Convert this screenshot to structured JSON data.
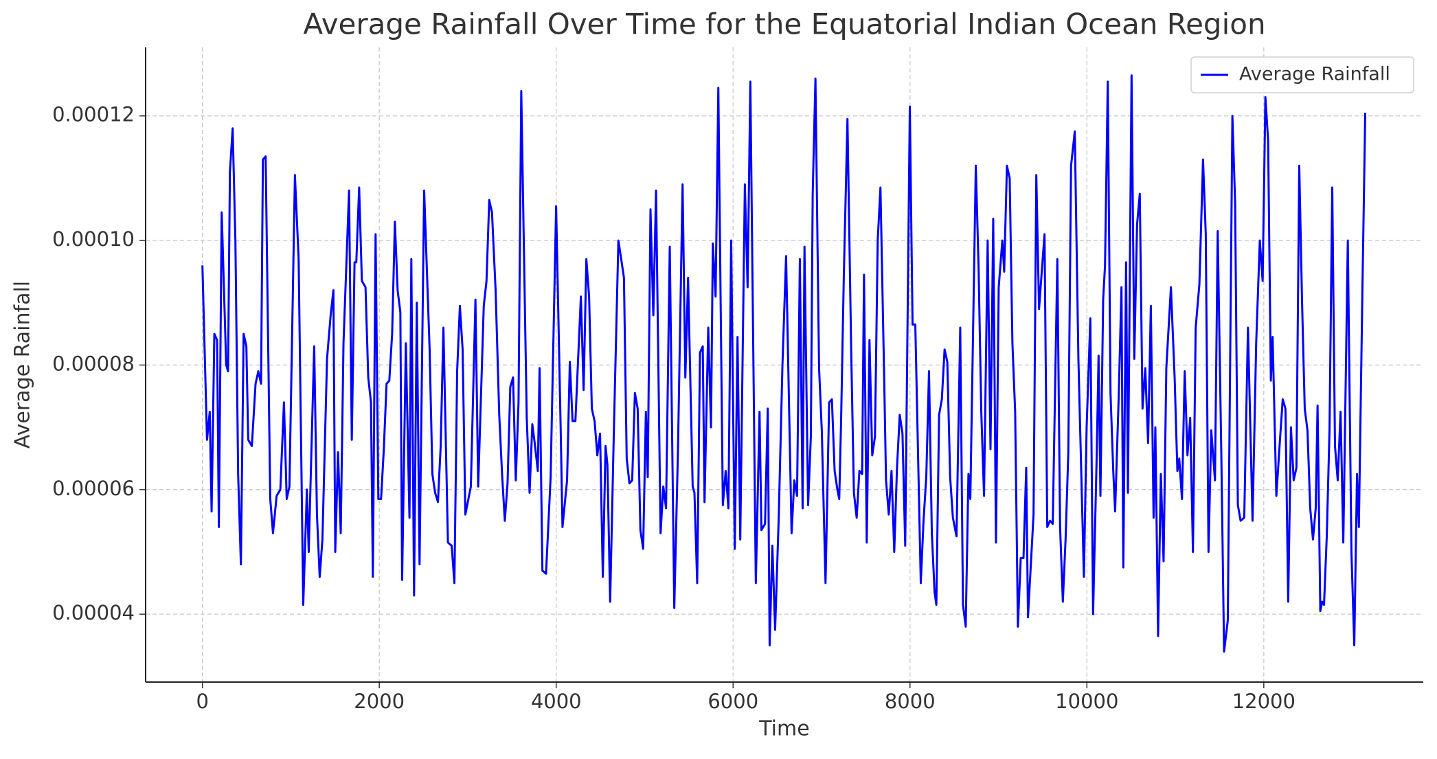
{
  "chart_data": {
    "type": "line",
    "title": "Average Rainfall Over Time for the Equatorial Indian Ocean Region",
    "xlabel": "Time",
    "ylabel": "Average Rainfall",
    "xlim": [
      -642,
      13803
    ],
    "ylim": [
      2.91e-05,
      0.000131
    ],
    "xticks": [
      0,
      2000,
      4000,
      6000,
      8000,
      10000,
      12000
    ],
    "yticks": [
      4e-05,
      6e-05,
      8e-05,
      {
        "value": 0.0001,
        "label": "0.00010"
      },
      0.00012
    ],
    "grid": true,
    "legend": "upper right",
    "x": [
      0,
      52,
      83,
      104,
      135,
      166,
      186,
      218,
      269,
      290,
      311,
      342,
      373,
      404,
      435,
      466,
      497,
      518,
      559,
      601,
      632,
      663,
      684,
      715,
      767,
      798,
      839,
      881,
      922,
      953,
      984,
      1046,
      1088,
      1140,
      1181,
      1202,
      1264,
      1295,
      1326,
      1357,
      1409,
      1450,
      1481,
      1502,
      1533,
      1564,
      1595,
      1658,
      1689,
      1720,
      1740,
      1772,
      1803,
      1844,
      1875,
      1906,
      1927,
      1958,
      1989,
      2020,
      2051,
      2082,
      2113,
      2145,
      2176,
      2207,
      2238,
      2258,
      2300,
      2341,
      2362,
      2393,
      2424,
      2455,
      2507,
      2569,
      2600,
      2631,
      2663,
      2694,
      2725,
      2776,
      2818,
      2849,
      2880,
      2911,
      2942,
      2973,
      3035,
      3087,
      3118,
      3181,
      3212,
      3243,
      3274,
      3315,
      3356,
      3388,
      3419,
      3450,
      3481,
      3512,
      3543,
      3574,
      3605,
      3667,
      3699,
      3730,
      3761,
      3792,
      3812,
      3844,
      3885,
      3937,
      3999,
      4051,
      4071,
      4123,
      4154,
      4185,
      4217,
      4279,
      4310,
      4341,
      4372,
      4403,
      4434,
      4465,
      4496,
      4527,
      4558,
      4579,
      4610,
      4652,
      4703,
      4735,
      4766,
      4797,
      4828,
      4859,
      4890,
      4921,
      4952,
      4983,
      5014,
      5035,
      5066,
      5098,
      5129,
      5180,
      5211,
      5242,
      5284,
      5335,
      5377,
      5429,
      5460,
      5491,
      5543,
      5563,
      5594,
      5626,
      5657,
      5677,
      5719,
      5750,
      5771,
      5802,
      5833,
      5884,
      5916,
      5947,
      5978,
      6019,
      6050,
      6081,
      6133,
      6164,
      6195,
      6257,
      6299,
      6320,
      6361,
      6392,
      6413,
      6444,
      6475,
      6516,
      6558,
      6599,
      6641,
      6661,
      6692,
      6723,
      6755,
      6786,
      6807,
      6848,
      6879,
      6900,
      6931,
      6972,
      7003,
      7045,
      7086,
      7117,
      7148,
      7179,
      7200,
      7221,
      7252,
      7293,
      7335,
      7366,
      7397,
      7428,
      7459,
      7480,
      7511,
      7542,
      7573,
      7604,
      7635,
      7666,
      7708,
      7729,
      7760,
      7791,
      7822,
      7853,
      7884,
      7915,
      7946,
      7998,
      8029,
      8060,
      8122,
      8153,
      8184,
      8215,
      8247,
      8278,
      8298,
      8329,
      8360,
      8391,
      8422,
      8454,
      8485,
      8526,
      8568,
      8599,
      8630,
      8661,
      8682,
      8744,
      8775,
      8806,
      8837,
      8878,
      8910,
      8941,
      8972,
      9003,
      9044,
      9065,
      9096,
      9127,
      9158,
      9189,
      9220,
      9252,
      9283,
      9314,
      9334,
      9397,
      9428,
      9459,
      9500,
      9521,
      9552,
      9583,
      9614,
      9666,
      9697,
      9728,
      9759,
      9790,
      9821,
      9863,
      9904,
      9966,
      9997,
      10039,
      10070,
      10111,
      10132,
      10153,
      10184,
      10205,
      10236,
      10267,
      10298,
      10319,
      10360,
      10391,
      10412,
      10443,
      10464,
      10505,
      10536,
      10567,
      10598,
      10629,
      10660,
      10692,
      10723,
      10754,
      10774,
      10805,
      10836,
      10867,
      10898,
      10950,
      10992,
      11023,
      11044,
      11075,
      11106,
      11137,
      11168,
      11199,
      11230,
      11272,
      11313,
      11344,
      11375,
      11406,
      11448,
      11479,
      11520,
      11551,
      11593,
      11645,
      11676,
      11707,
      11738,
      11779,
      11821,
      11873,
      11914,
      11955,
      11987,
      12018,
      12049,
      12080,
      12100,
      12142,
      12183,
      12214,
      12245,
      12276,
      12307,
      12338,
      12369,
      12401,
      12432,
      12463,
      12494,
      12525,
      12556,
      12587,
      12608,
      12639,
      12660,
      12681,
      12712,
      12743,
      12774,
      12805,
      12836,
      12868,
      12899,
      12950,
      12991,
      13023,
      13054,
      13075,
      13116,
      13147
    ],
    "series": [
      {
        "name": "Average Rainfall",
        "color": "#0000ff",
        "values": [
          9.6e-05,
          6.8e-05,
          7.25e-05,
          5.65e-05,
          8.5e-05,
          8.4e-05,
          5.4e-05,
          0.0001045,
          8e-05,
          7.9e-05,
          0.000111,
          0.000118,
          0.0001,
          6.25e-05,
          4.8e-05,
          8.5e-05,
          8.3e-05,
          6.8e-05,
          6.7e-05,
          7.7e-05,
          7.9e-05,
          7.7e-05,
          0.000113,
          0.0001135,
          5.85e-05,
          5.3e-05,
          5.9e-05,
          6e-05,
          7.4e-05,
          5.85e-05,
          6.05e-05,
          0.0001105,
          9.7e-05,
          4.15e-05,
          6e-05,
          5e-05,
          8.3e-05,
          5.6e-05,
          4.6e-05,
          5.2e-05,
          8.1e-05,
          8.8e-05,
          9.2e-05,
          5e-05,
          6.6e-05,
          5.3e-05,
          8.35e-05,
          0.000108,
          6.8e-05,
          9.65e-05,
          9.65e-05,
          0.0001085,
          9.35e-05,
          9.25e-05,
          7.8e-05,
          7.4e-05,
          4.6e-05,
          0.000101,
          5.85e-05,
          5.85e-05,
          6.65e-05,
          7.7e-05,
          7.75e-05,
          8.5e-05,
          0.000103,
          9.2e-05,
          8.85e-05,
          4.55e-05,
          8.35e-05,
          5.55e-05,
          9.7e-05,
          4.3e-05,
          9e-05,
          4.8e-05,
          0.000108,
          8.25e-05,
          6.25e-05,
          5.95e-05,
          5.8e-05,
          6.7e-05,
          8.6e-05,
          5.15e-05,
          5.1e-05,
          4.5e-05,
          7.9e-05,
          8.95e-05,
          8.25e-05,
          5.6e-05,
          6.05e-05,
          9.05e-05,
          6.05e-05,
          8.95e-05,
          9.35e-05,
          0.0001065,
          0.0001045,
          9.2e-05,
          7.2e-05,
          6.25e-05,
          5.5e-05,
          6.1e-05,
          7.65e-05,
          7.8e-05,
          6.15e-05,
          7.4e-05,
          0.000124,
          7.15e-05,
          5.95e-05,
          7.05e-05,
          6.7e-05,
          6.3e-05,
          7.95e-05,
          4.7e-05,
          4.65e-05,
          6.2e-05,
          0.0001055,
          6.95e-05,
          5.4e-05,
          6.15e-05,
          8.05e-05,
          7.1e-05,
          7.1e-05,
          9.1e-05,
          7.6e-05,
          9.7e-05,
          9.1e-05,
          7.3e-05,
          7.1e-05,
          6.55e-05,
          6.9e-05,
          4.6e-05,
          6.7e-05,
          6.4e-05,
          4.2e-05,
          6.95e-05,
          0.0001,
          9.7e-05,
          9.4e-05,
          6.5e-05,
          6.1e-05,
          6.15e-05,
          7.55e-05,
          7.3e-05,
          5.35e-05,
          5.05e-05,
          7.25e-05,
          6.2e-05,
          0.000105,
          8.8e-05,
          0.000108,
          5.3e-05,
          6.05e-05,
          5.7e-05,
          9.9e-05,
          4.1e-05,
          6.65e-05,
          0.000109,
          7.8e-05,
          9.4e-05,
          6.05e-05,
          5.95e-05,
          4.5e-05,
          8.2e-05,
          8.3e-05,
          5.8e-05,
          8.6e-05,
          7e-05,
          9.95e-05,
          9.1e-05,
          0.0001245,
          5.75e-05,
          6.3e-05,
          5.7e-05,
          0.0001,
          5.05e-05,
          8.45e-05,
          5.2e-05,
          0.000109,
          9.25e-05,
          0.0001255,
          4.5e-05,
          7.25e-05,
          5.35e-05,
          5.45e-05,
          7.3e-05,
          3.5e-05,
          5.1e-05,
          3.75e-05,
          5.55e-05,
          8e-05,
          9.75e-05,
          6.75e-05,
          5.3e-05,
          6.15e-05,
          5.9e-05,
          9.7e-05,
          5.7e-05,
          9.9e-05,
          5.75e-05,
          6.85e-05,
          0.0001075,
          0.000126,
          7.95e-05,
          6.95e-05,
          4.5e-05,
          7.4e-05,
          7.45e-05,
          6.3e-05,
          6e-05,
          5.85e-05,
          7.1e-05,
          9.45e-05,
          0.0001195,
          8.25e-05,
          5.95e-05,
          5.55e-05,
          6.3e-05,
          6.25e-05,
          9.45e-05,
          5.15e-05,
          8.4e-05,
          6.55e-05,
          6.85e-05,
          0.0001,
          0.0001085,
          7.8e-05,
          6.15e-05,
          5.6e-05,
          6.3e-05,
          5e-05,
          6.35e-05,
          7.2e-05,
          6.9e-05,
          5.1e-05,
          0.0001215,
          8.65e-05,
          8.65e-05,
          4.5e-05,
          5.5e-05,
          6.2e-05,
          7.9e-05,
          5.3e-05,
          4.35e-05,
          4.15e-05,
          7.2e-05,
          7.45e-05,
          8.25e-05,
          8.05e-05,
          6.2e-05,
          5.55e-05,
          5.25e-05,
          8.6e-05,
          4.15e-05,
          3.8e-05,
          6.25e-05,
          5.85e-05,
          0.000112,
          9.6e-05,
          7.25e-05,
          5.9e-05,
          0.0001,
          6.65e-05,
          0.0001035,
          5.15e-05,
          9.25e-05,
          0.0001,
          9.5e-05,
          0.000112,
          0.00011,
          8.35e-05,
          7.25e-05,
          3.8e-05,
          4.9e-05,
          4.9e-05,
          6.35e-05,
          3.95e-05,
          5.6e-05,
          0.0001105,
          8.9e-05,
          9.7e-05,
          0.000101,
          5.4e-05,
          5.5e-05,
          5.45e-05,
          9.7e-05,
          5.4e-05,
          4.2e-05,
          5.2e-05,
          6.6e-05,
          0.000112,
          0.0001175,
          8.1e-05,
          4.6e-05,
          7e-05,
          8.75e-05,
          4e-05,
          6.55e-05,
          8.15e-05,
          5.9e-05,
          9.05e-05,
          9.6e-05,
          0.0001255,
          7.55e-05,
          6.3e-05,
          5.65e-05,
          7.5e-05,
          9.25e-05,
          4.75e-05,
          9.65e-05,
          5.95e-05,
          0.0001265,
          8.1e-05,
          0.0001025,
          0.0001075,
          7.3e-05,
          7.95e-05,
          6.75e-05,
          8.95e-05,
          5.55e-05,
          7e-05,
          3.65e-05,
          6.25e-05,
          4.85e-05,
          7.95e-05,
          9.25e-05,
          7.8e-05,
          6.3e-05,
          6.5e-05,
          5.85e-05,
          7.9e-05,
          6.55e-05,
          7.15e-05,
          5e-05,
          8.6e-05,
          9.3e-05,
          0.000113,
          0.000101,
          5e-05,
          6.95e-05,
          6.15e-05,
          0.0001015,
          6.55e-05,
          3.4e-05,
          3.9e-05,
          0.00012,
          0.000106,
          5.75e-05,
          5.5e-05,
          5.55e-05,
          8.6e-05,
          5.5e-05,
          8.35e-05,
          0.0001,
          9.35e-05,
          0.000123,
          0.000116,
          7.75e-05,
          8.45e-05,
          5.9e-05,
          6.8e-05,
          7.45e-05,
          7.3e-05,
          4.2e-05,
          7e-05,
          6.15e-05,
          6.35e-05,
          0.000112,
          9.05e-05,
          7.3e-05,
          6.95e-05,
          5.7e-05,
          5.2e-05,
          5.7e-05,
          7.35e-05,
          4.05e-05,
          4.2e-05,
          4.15e-05,
          5.25e-05,
          6.95e-05,
          0.0001085,
          6.7e-05,
          6.15e-05,
          7.25e-05,
          5.15e-05,
          0.0001,
          5e-05,
          3.5e-05,
          6.25e-05,
          5.4e-05,
          9.3e-05,
          0.0001205
        ]
      }
    ]
  }
}
